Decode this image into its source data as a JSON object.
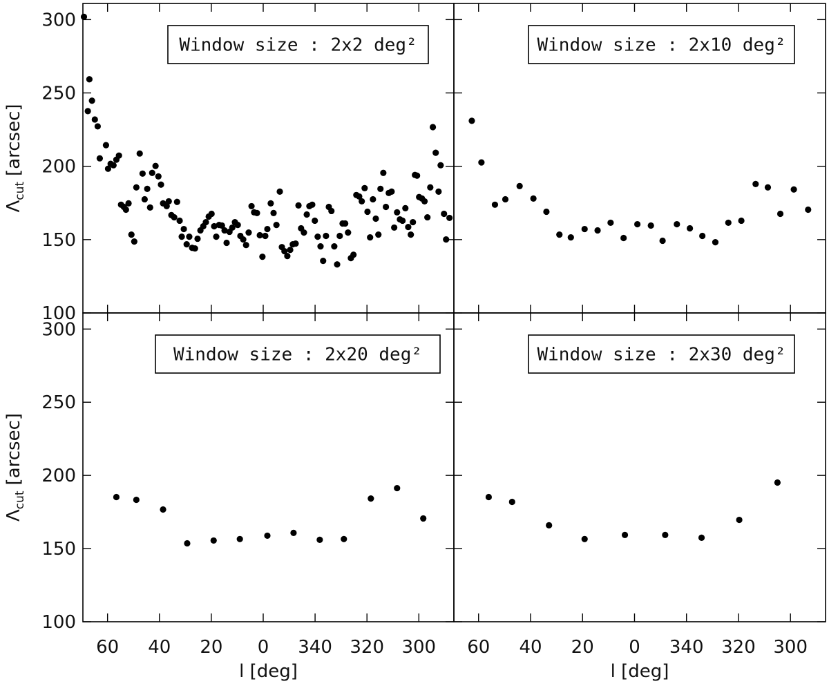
{
  "chart_data": [
    {
      "type": "scatter",
      "title": "Window size : 2x2 deg²",
      "color": "#000000",
      "ylabel": {
        "symbol": "Λ",
        "subscript": "cut",
        "unit": "[arcsec]"
      },
      "xlim": [
        69.5,
        -73.5
      ],
      "ylim": [
        100,
        311
      ],
      "xticks": [
        60,
        40,
        20,
        0,
        -20,
        -40,
        -60
      ],
      "yticks": [
        100,
        150,
        200,
        250,
        300
      ],
      "x": [
        69.1,
        67.6,
        67.0,
        66.0,
        64.9,
        63.8,
        63.0,
        60.6,
        59.8,
        58.8,
        57.7,
        56.6,
        55.6,
        54.8,
        53.7,
        52.9,
        51.9,
        50.8,
        49.7,
        48.9,
        47.6,
        46.5,
        45.7,
        44.7,
        43.6,
        42.8,
        41.5,
        40.4,
        39.4,
        38.6,
        37.2,
        36.4,
        35.4,
        34.3,
        33.2,
        32.2,
        31.4,
        30.6,
        29.5,
        28.5,
        27.4,
        26.3,
        25.3,
        24.2,
        23.1,
        22.1,
        21.0,
        19.9,
        18.9,
        18.1,
        17.0,
        15.9,
        14.9,
        14.1,
        13.0,
        11.9,
        10.9,
        9.8,
        8.8,
        7.7,
        6.6,
        5.6,
        4.5,
        3.5,
        2.4,
        1.3,
        0.3,
        -0.8,
        -1.6,
        -2.9,
        -4.0,
        -5.1,
        -6.4,
        -7.2,
        -8.2,
        -9.3,
        -10.4,
        -11.4,
        -12.5,
        -13.6,
        -14.6,
        -15.7,
        -16.8,
        -17.8,
        -18.9,
        -19.9,
        -21.0,
        -22.1,
        -23.1,
        -24.2,
        -25.3,
        -26.3,
        -27.4,
        -28.5,
        -29.5,
        -30.6,
        -31.6,
        -32.7,
        -33.8,
        -34.8,
        -35.9,
        -37.0,
        -38.0,
        -39.1,
        -40.2,
        -41.2,
        -42.3,
        -43.4,
        -44.4,
        -45.2,
        -46.3,
        -47.3,
        -48.4,
        -49.5,
        -50.5,
        -51.6,
        -52.7,
        -53.7,
        -54.8,
        -55.9,
        -56.9,
        -57.7,
        -58.5,
        -59.3,
        -60.1,
        -61.2,
        -62.2,
        -63.3,
        -64.4,
        -65.4,
        -66.5,
        -67.6,
        -68.4,
        -69.7,
        -70.5,
        -71.8
      ],
      "values": [
        301.9,
        237.6,
        259.3,
        244.7,
        231.9,
        227.2,
        205.4,
        214.4,
        198.3,
        201.7,
        200.7,
        204.5,
        207.3,
        173.8,
        172.3,
        170.4,
        174.7,
        153.4,
        148.7,
        185.6,
        208.7,
        195.0,
        177.5,
        184.6,
        171.9,
        195.5,
        200.2,
        193.1,
        187.5,
        174.7,
        172.8,
        176.1,
        166.7,
        165.2,
        175.7,
        162.9,
        152.0,
        157.2,
        146.8,
        152.0,
        144.4,
        144.0,
        150.6,
        156.3,
        159.1,
        161.9,
        165.7,
        167.6,
        159.1,
        152.0,
        160.0,
        159.6,
        156.3,
        147.8,
        155.3,
        158.2,
        161.9,
        160.0,
        152.5,
        150.1,
        146.3,
        154.8,
        172.8,
        168.6,
        168.1,
        153.0,
        138.3,
        152.5,
        157.2,
        174.7,
        168.1,
        160.0,
        182.7,
        144.9,
        142.1,
        138.8,
        143.0,
        146.8,
        147.3,
        173.3,
        157.7,
        154.8,
        167.1,
        172.8,
        173.8,
        162.9,
        152.0,
        145.4,
        135.5,
        152.5,
        172.3,
        169.5,
        145.4,
        133.1,
        152.5,
        161.0,
        161.0,
        154.8,
        137.4,
        139.7,
        180.4,
        179.4,
        176.1,
        185.1,
        169.0,
        151.5,
        177.5,
        164.3,
        153.4,
        184.6,
        195.5,
        172.3,
        181.8,
        182.7,
        158.2,
        168.6,
        163.8,
        162.9,
        171.4,
        158.6,
        153.4,
        161.9,
        194.1,
        193.6,
        179.0,
        178.0,
        176.1,
        165.2,
        185.6,
        226.7,
        209.2,
        182.7,
        200.7,
        167.6,
        150.1,
        164.8
      ]
    },
    {
      "type": "scatter",
      "title": "Window size : 2x10 deg²",
      "color": "#000000",
      "xlim": [
        69.5,
        -73.5
      ],
      "ylim": [
        100,
        311
      ],
      "xticks": [
        60,
        40,
        20,
        0,
        -20,
        -40,
        -60
      ],
      "yticks": [
        100,
        150,
        200,
        250,
        300
      ],
      "x": [
        62.6,
        58.9,
        53.7,
        49.7,
        44.2,
        38.9,
        33.9,
        28.9,
        24.5,
        19.2,
        14.2,
        9.2,
        4.2,
        -1.1,
        -6.3,
        -10.8,
        -16.3,
        -21.3,
        -26.1,
        -31.1,
        -36.1,
        -41.1,
        -46.6,
        -51.3,
        -56.1,
        -61.3,
        -66.8
      ],
      "values": [
        231.0,
        202.6,
        173.8,
        177.5,
        186.5,
        178.0,
        169.0,
        153.4,
        151.5,
        157.2,
        156.3,
        161.5,
        151.1,
        160.5,
        159.6,
        149.2,
        160.5,
        157.7,
        152.5,
        148.2,
        161.5,
        162.9,
        187.9,
        185.6,
        167.6,
        184.2,
        170.4
      ]
    },
    {
      "type": "scatter",
      "title": "Window size : 2x20 deg²",
      "color": "#000000",
      "ylabel": {
        "symbol": "Λ",
        "subscript": "cut",
        "unit": "[arcsec]"
      },
      "xlabel": "l [deg]",
      "xlim": [
        69.5,
        -73.5
      ],
      "ylim": [
        100,
        311
      ],
      "xticks": [
        60,
        40,
        20,
        0,
        {
          "value": -20,
          "label": "340"
        },
        {
          "value": -40,
          "label": "320"
        },
        {
          "value": -60,
          "label": "300"
        }
      ],
      "yticks": [
        100,
        150,
        200,
        250,
        300
      ],
      "x": [
        56.6,
        48.9,
        38.6,
        29.3,
        19.1,
        9.0,
        -1.6,
        -11.7,
        -21.8,
        -31.1,
        -41.5,
        -51.6,
        -61.7
      ],
      "values": [
        185.2,
        183.3,
        176.7,
        153.6,
        155.5,
        156.5,
        158.8,
        160.7,
        156.0,
        156.5,
        184.2,
        191.3,
        170.6
      ]
    },
    {
      "type": "scatter",
      "title": "Window size : 2x30 deg²",
      "color": "#000000",
      "xlabel": "l [deg]",
      "xlim": [
        69.5,
        -73.5
      ],
      "ylim": [
        100,
        311
      ],
      "xticks": [
        60,
        40,
        20,
        0,
        {
          "value": -20,
          "label": "340"
        },
        {
          "value": -40,
          "label": "320"
        },
        {
          "value": -60,
          "label": "300"
        }
      ],
      "yticks": [
        100,
        150,
        200,
        250,
        300
      ],
      "x": [
        56.1,
        47.1,
        32.9,
        19.2,
        3.7,
        -11.8,
        -25.8,
        -40.3,
        -55.0
      ],
      "values": [
        185.2,
        181.9,
        165.9,
        156.5,
        159.3,
        159.3,
        157.4,
        169.6,
        195.1
      ]
    }
  ]
}
